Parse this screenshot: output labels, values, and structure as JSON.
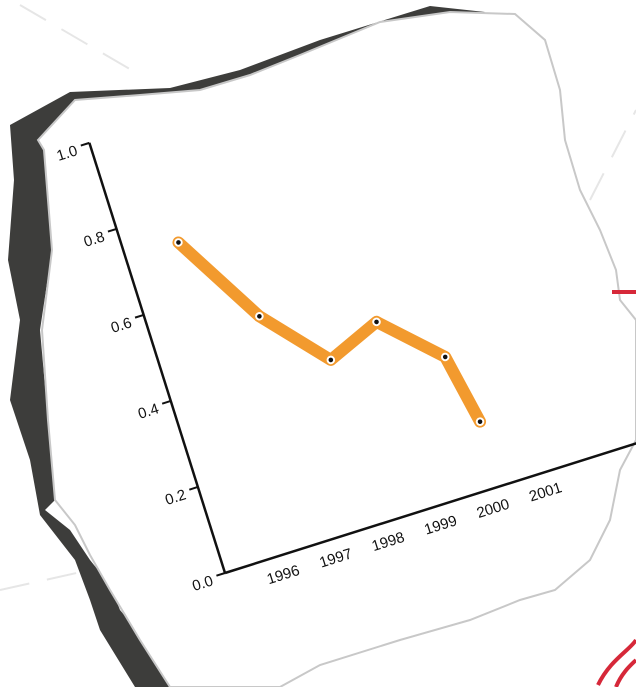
{
  "chart_data": {
    "type": "line",
    "x": [
      1996,
      1997,
      1998,
      1999,
      2000,
      2000.25
    ],
    "series": [
      {
        "color": "#f29a2e",
        "values": [
          0.73,
          0.52,
          0.38,
          0.43,
          0.31,
          0.15
        ]
      }
    ],
    "xlim": [
      1995,
      2003
    ],
    "xticks": [
      1996,
      1997,
      1998,
      1999,
      2000,
      2001
    ],
    "ylim": [
      0,
      1
    ],
    "yticks": [
      {
        "value": 0,
        "label": "0.0"
      },
      0.2,
      0.4,
      0.6,
      0.8,
      {
        "value": 1,
        "label": "1.0"
      }
    ]
  }
}
